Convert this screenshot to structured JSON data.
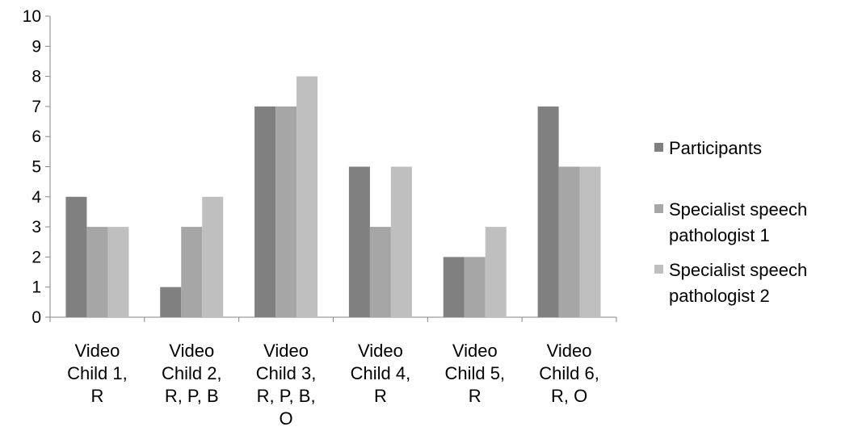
{
  "chart_data": {
    "type": "bar",
    "title": "",
    "xlabel": "",
    "ylabel": "",
    "ylim": [
      0,
      10
    ],
    "yticks": [
      "0",
      "1",
      "2",
      "3",
      "4",
      "5",
      "6",
      "7",
      "8",
      "9",
      "10"
    ],
    "grid": false,
    "legend_position": "right",
    "categories": [
      [
        "Video",
        "Child 1,",
        "R"
      ],
      [
        "Video",
        "Child 2,",
        "R, P, B"
      ],
      [
        "Video",
        "Child 3,",
        "R, P, B,",
        "O"
      ],
      [
        "Video",
        "Child 4,",
        "R"
      ],
      [
        "Video",
        "Child 5,",
        "R"
      ],
      [
        "Video",
        "Child 6,",
        "R, O"
      ]
    ],
    "series": [
      {
        "name": "Participants",
        "label_lines": [
          "Participants"
        ],
        "color": "#808080",
        "values": [
          4,
          1,
          7,
          5,
          2,
          7
        ]
      },
      {
        "name": "Specialist speech pathologist 1",
        "label_lines": [
          "Specialist speech",
          "pathologist 1"
        ],
        "color": "#a6a6a6",
        "values": [
          3,
          3,
          7,
          3,
          2,
          5
        ]
      },
      {
        "name": "Specialist speech pathologist 2",
        "label_lines": [
          "Specialist speech",
          "pathologist 2"
        ],
        "color": "#bfbfbf",
        "values": [
          3,
          4,
          8,
          5,
          3,
          5
        ]
      }
    ]
  }
}
